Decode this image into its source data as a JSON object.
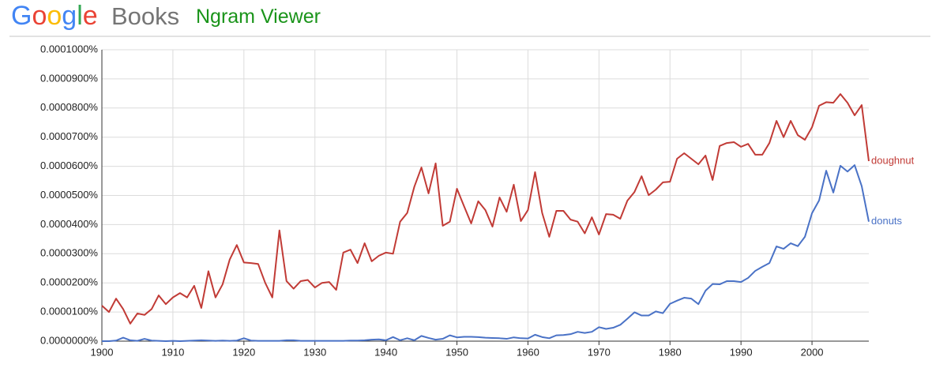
{
  "header": {
    "logo": "Google",
    "product": "Books",
    "app": "Ngram Viewer"
  },
  "chart_data": {
    "type": "line",
    "x": [
      1900,
      1901,
      1902,
      1903,
      1904,
      1905,
      1906,
      1907,
      1908,
      1909,
      1910,
      1911,
      1912,
      1913,
      1914,
      1915,
      1916,
      1917,
      1918,
      1919,
      1920,
      1921,
      1922,
      1923,
      1924,
      1925,
      1926,
      1927,
      1928,
      1929,
      1930,
      1931,
      1932,
      1933,
      1934,
      1935,
      1936,
      1937,
      1938,
      1939,
      1940,
      1941,
      1942,
      1943,
      1944,
      1945,
      1946,
      1947,
      1948,
      1949,
      1950,
      1951,
      1952,
      1953,
      1954,
      1955,
      1956,
      1957,
      1958,
      1959,
      1960,
      1961,
      1962,
      1963,
      1964,
      1965,
      1966,
      1967,
      1968,
      1969,
      1970,
      1971,
      1972,
      1973,
      1974,
      1975,
      1976,
      1977,
      1978,
      1979,
      1980,
      1981,
      1982,
      1983,
      1984,
      1985,
      1986,
      1987,
      1988,
      1989,
      1990,
      1991,
      1992,
      1993,
      1994,
      1995,
      1996,
      1997,
      1998,
      1999,
      2000,
      2001,
      2002,
      2003,
      2004,
      2005,
      2006,
      2007,
      2008
    ],
    "series": [
      {
        "name": "doughnut",
        "color": "#c13b36",
        "values": [
          1.22e-05,
          1e-05,
          1.46e-05,
          1.1e-05,
          6e-06,
          9.5e-06,
          9e-06,
          1.1e-05,
          1.57e-05,
          1.27e-05,
          1.5e-05,
          1.65e-05,
          1.5e-05,
          1.9e-05,
          1.14e-05,
          2.4e-05,
          1.5e-05,
          1.95e-05,
          2.8e-05,
          3.3e-05,
          2.7e-05,
          2.68e-05,
          2.65e-05,
          2e-05,
          1.5e-05,
          3.8e-05,
          2.06e-05,
          1.8e-05,
          2.06e-05,
          2.1e-05,
          1.84e-05,
          2e-05,
          2.03e-05,
          1.76e-05,
          3.04e-05,
          3.14e-05,
          2.68e-05,
          3.36e-05,
          2.74e-05,
          2.93e-05,
          3.04e-05,
          3e-05,
          4.1e-05,
          4.4e-05,
          5.3e-05,
          5.96e-05,
          5.07e-05,
          6.1e-05,
          3.96e-05,
          4.1e-05,
          5.23e-05,
          4.63e-05,
          4.04e-05,
          4.8e-05,
          4.5e-05,
          3.93e-05,
          4.93e-05,
          4.44e-05,
          5.37e-05,
          4.12e-05,
          4.5e-05,
          5.8e-05,
          4.4e-05,
          3.58e-05,
          4.47e-05,
          4.47e-05,
          4.17e-05,
          4.1e-05,
          3.7e-05,
          4.25e-05,
          3.66e-05,
          4.36e-05,
          4.34e-05,
          4.2e-05,
          4.82e-05,
          5.12e-05,
          5.66e-05,
          5.01e-05,
          5.2e-05,
          5.45e-05,
          5.47e-05,
          6.26e-05,
          6.45e-05,
          6.26e-05,
          6.07e-05,
          6.37e-05,
          5.53e-05,
          6.7e-05,
          6.8e-05,
          6.83e-05,
          6.67e-05,
          6.77e-05,
          6.4e-05,
          6.4e-05,
          6.8e-05,
          7.56e-05,
          7e-05,
          7.56e-05,
          7.07e-05,
          6.91e-05,
          7.34e-05,
          8.08e-05,
          8.2e-05,
          8.18e-05,
          8.48e-05,
          8.18e-05,
          7.75e-05,
          8.1e-05,
          6.18e-05
        ]
      },
      {
        "name": "donuts",
        "color": "#4a72c6",
        "values": [
          0,
          0,
          2e-07,
          1.2e-06,
          3e-07,
          1e-07,
          8e-07,
          2e-07,
          1e-07,
          0,
          1e-07,
          0,
          1e-07,
          2e-07,
          3e-07,
          2e-07,
          1e-07,
          2e-07,
          1e-07,
          2e-07,
          1e-06,
          2e-07,
          1e-07,
          1e-07,
          1e-07,
          1e-07,
          3e-07,
          3e-07,
          1e-07,
          1e-07,
          1e-07,
          1e-07,
          1e-07,
          1e-07,
          1e-07,
          2e-07,
          2e-07,
          3e-07,
          5e-07,
          6e-07,
          3e-07,
          1.4e-06,
          3e-07,
          1e-06,
          3e-07,
          1.8e-06,
          1.1e-06,
          5e-07,
          8e-07,
          2e-06,
          1.3e-06,
          1.5e-06,
          1.5e-06,
          1.4e-06,
          1.2e-06,
          1.1e-06,
          1e-06,
          8e-07,
          1.3e-06,
          1e-06,
          9e-07,
          2.2e-06,
          1.4e-06,
          1e-06,
          2e-06,
          2.1e-06,
          2.4e-06,
          3.2e-06,
          2.8e-06,
          3.2e-06,
          4.8e-06,
          4.2e-06,
          4.6e-06,
          5.6e-06,
          7.7e-06,
          9.9e-06,
          8.8e-06,
          8.8e-06,
          1.02e-05,
          9.6e-06,
          1.28e-05,
          1.39e-05,
          1.49e-05,
          1.46e-05,
          1.27e-05,
          1.73e-05,
          1.96e-05,
          1.95e-05,
          2.06e-05,
          2.06e-05,
          2.03e-05,
          2.17e-05,
          2.41e-05,
          2.55e-05,
          2.68e-05,
          3.25e-05,
          3.17e-05,
          3.36e-05,
          3.26e-05,
          3.58e-05,
          4.39e-05,
          4.83e-05,
          5.85e-05,
          5.1e-05,
          6.02e-05,
          5.82e-05,
          6.04e-05,
          5.32e-05,
          4.1e-05
        ]
      }
    ],
    "xlim": [
      1900,
      2008
    ],
    "xticks": [
      1900,
      1910,
      1920,
      1930,
      1940,
      1950,
      1960,
      1970,
      1980,
      1990,
      2000
    ],
    "ylim": [
      0,
      0.0001
    ],
    "yticks": [
      {
        "value": 0,
        "label": "0.0000000%"
      },
      {
        "value": 1e-05,
        "label": "0.0000100%"
      },
      {
        "value": 2e-05,
        "label": "0.0000200%"
      },
      {
        "value": 3e-05,
        "label": "0.0000300%"
      },
      {
        "value": 4e-05,
        "label": "0.0000400%"
      },
      {
        "value": 5e-05,
        "label": "0.0000500%"
      },
      {
        "value": 6e-05,
        "label": "0.0000600%"
      },
      {
        "value": 7e-05,
        "label": "0.0000700%"
      },
      {
        "value": 8e-05,
        "label": "0.0000800%"
      },
      {
        "value": 9e-05,
        "label": "0.0000900%"
      },
      {
        "value": 0.0001,
        "label": "0.0001000%"
      }
    ],
    "grid": true
  }
}
